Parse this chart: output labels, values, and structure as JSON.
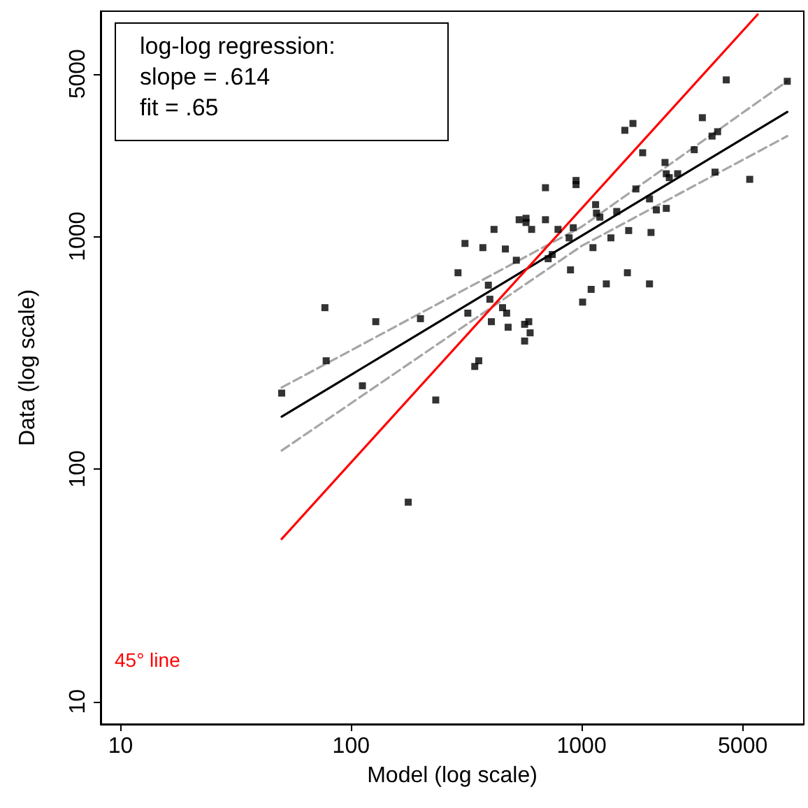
{
  "chart_data": {
    "type": "scatter",
    "xlabel": "Model (log scale)",
    "ylabel": "Data (log scale)",
    "log": "xy",
    "grid": false,
    "legend": false,
    "xlim": [
      8.2,
      9200
    ],
    "ylim": [
      8,
      9300
    ],
    "xticks": [
      10,
      100,
      1000,
      5000
    ],
    "yticks": [
      10,
      100,
      1000,
      5000
    ],
    "annotations": [
      "log-log regression:",
      "slope = .614",
      "fit = .65"
    ],
    "series": [
      {
        "marker": "square",
        "color": "#000000",
        "x": [
          50,
          77,
          78,
          112,
          128,
          177,
          200,
          233,
          291,
          312,
          321,
          344,
          358,
          373,
          394,
          400,
          406,
          417,
          454,
          467,
          473,
          480,
          521,
          536,
          574,
          574,
          607,
          566,
          590,
          598,
          566,
          4240,
          7800,
          3340,
          1540,
          1670,
          3890,
          3680,
          1840,
          3080,
          2300,
          2330,
          2400,
          2610,
          3790,
          5360,
          1720,
          1970,
          2330,
          2110,
          697,
          946,
          946,
          1150,
          1160,
          1200,
          1420,
          697,
          790,
          920,
          883,
          1600,
          2000,
          1340,
          1120,
          746,
          716,
          895,
          1580,
          1100,
          1280,
          1970,
          1010
        ],
        "values": [
          212,
          494,
          292,
          228,
          430,
          72,
          443,
          198,
          698,
          933,
          468,
          276,
          292,
          895,
          617,
          537,
          430,
          1072,
          494,
          883,
          468,
          407,
          790,
          1180,
          1197,
          1148,
          1072,
          419,
          430,
          385,
          355,
          4710,
          4645,
          3240,
          2860,
          3060,
          2820,
          2700,
          2290,
          2360,
          2080,
          1860,
          1790,
          1860,
          1890,
          1760,
          1600,
          1450,
          1320,
          1300,
          1620,
          1740,
          1670,
          1370,
          1260,
          1210,
          1280,
          1180,
          1072,
          1090,
          986,
          1060,
          1040,
          986,
          895,
          836,
          802,
          718,
          698,
          592,
          625,
          625,
          522
        ]
      },
      {
        "type": "line",
        "marker": "none",
        "line_style": "solid",
        "color": "#000000",
        "x": [
          50,
          7800
        ],
        "values": [
          168,
          3430
        ]
      },
      {
        "type": "line",
        "marker": "none",
        "line_style": "dashed",
        "color": "#a6a6a6",
        "x": [
          50,
          1000,
          7800
        ],
        "values": [
          224,
          1100,
          4650
        ]
      },
      {
        "type": "line",
        "marker": "none",
        "line_style": "dashed",
        "color": "#a6a6a6",
        "x": [
          50,
          1000,
          7800
        ],
        "values": [
          120,
          910,
          2700
        ]
      },
      {
        "type": "line",
        "marker": "none",
        "line_style": "solid",
        "name": "45° line",
        "color": "#ff0000",
        "x": [
          50,
          5800
        ],
        "values": [
          50,
          9000
        ]
      }
    ]
  }
}
